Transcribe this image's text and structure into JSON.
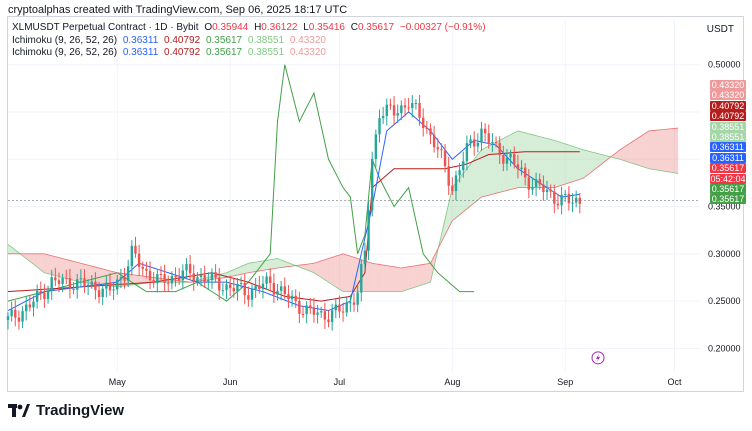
{
  "caption": "cryptoalphas created with TradingView.com, Sep 06, 2025 18:17 UTC",
  "brand": "TradingView",
  "legend": {
    "symbol": "XLMUSDT Perpetual Contract · 1D · Bybit",
    "o_label": "O",
    "o": "0.35944",
    "h_label": "H",
    "h": "0.36122",
    "l_label": "L",
    "l": "0.35416",
    "c_label": "C",
    "c": "0.35617",
    "change": "−0.00327 (−0.91%)",
    "ichimoku1": "Ichimoku (9, 26, 52, 26)",
    "ichimoku2": "Ichimoku (9, 26, 52, 26)",
    "ichi_values": [
      "0.36311",
      "0.40792",
      "0.35617",
      "0.38551",
      "0.43320"
    ]
  },
  "currency": "USDT",
  "price_tags": [
    {
      "text": "0.43320",
      "color": "#ef9a9a"
    },
    {
      "text": "0.43320",
      "color": "#ef9a9a"
    },
    {
      "text": "0.40792",
      "color": "#b71c1c"
    },
    {
      "text": "0.40792",
      "color": "#b71c1c"
    },
    {
      "text": "0.38551",
      "color": "#a5d6a7"
    },
    {
      "text": "0.38551",
      "color": "#a5d6a7"
    },
    {
      "text": "0.36311",
      "color": "#2962ff"
    },
    {
      "text": "0.36311",
      "color": "#2962ff"
    },
    {
      "text": "0.35617",
      "color": "#f23645"
    },
    {
      "text": "05:42:04",
      "color": "#f23645"
    },
    {
      "text": "0.35617",
      "color": "#43a047"
    },
    {
      "text": "0.35617",
      "color": "#43a047"
    }
  ],
  "chart_data": {
    "type": "candlestick",
    "y_ticks": [
      0.5,
      0.45,
      0.4,
      0.35,
      0.3,
      0.25,
      0.2
    ],
    "y_tick_labels": [
      "0.50000",
      "",
      "",
      "0.35000",
      "0.30000",
      "0.25000",
      "0.20000"
    ],
    "ylim": [
      0.175,
      0.505
    ],
    "x_labels": [
      "May",
      "Jun",
      "Jul",
      "Aug",
      "Sep",
      "Oct"
    ],
    "x_label_days": [
      30,
      61,
      91,
      122,
      153,
      183
    ],
    "xlim": [
      0,
      190
    ],
    "colors": {
      "up": "#26a69a",
      "down": "#ef5350",
      "tenkan": "#2962ff",
      "kijun": "#b71c1c",
      "chikou": "#43a047",
      "cloud_bull": "#a5d6a7",
      "cloud_bear": "#ef9a9a"
    },
    "candle_keypoints": [
      [
        0,
        0.23
      ],
      [
        6,
        0.245
      ],
      [
        12,
        0.27
      ],
      [
        18,
        0.27
      ],
      [
        24,
        0.265
      ],
      [
        28,
        0.26
      ],
      [
        32,
        0.28
      ],
      [
        34,
        0.3
      ],
      [
        38,
        0.28
      ],
      [
        42,
        0.27
      ],
      [
        48,
        0.28
      ],
      [
        54,
        0.275
      ],
      [
        60,
        0.265
      ],
      [
        66,
        0.26
      ],
      [
        72,
        0.27
      ],
      [
        78,
        0.25
      ],
      [
        82,
        0.24
      ],
      [
        86,
        0.235
      ],
      [
        92,
        0.24
      ],
      [
        96,
        0.26
      ],
      [
        98,
        0.3
      ],
      [
        100,
        0.4
      ],
      [
        102,
        0.45
      ],
      [
        106,
        0.45
      ],
      [
        110,
        0.46
      ],
      [
        114,
        0.44
      ],
      [
        118,
        0.41
      ],
      [
        122,
        0.37
      ],
      [
        126,
        0.41
      ],
      [
        130,
        0.43
      ],
      [
        134,
        0.41
      ],
      [
        138,
        0.4
      ],
      [
        142,
        0.38
      ],
      [
        146,
        0.37
      ],
      [
        150,
        0.36
      ],
      [
        154,
        0.355
      ],
      [
        157,
        0.356
      ]
    ],
    "tenkan_keypoints": [
      [
        0,
        0.24
      ],
      [
        10,
        0.26
      ],
      [
        20,
        0.265
      ],
      [
        30,
        0.27
      ],
      [
        36,
        0.29
      ],
      [
        44,
        0.28
      ],
      [
        52,
        0.27
      ],
      [
        60,
        0.27
      ],
      [
        70,
        0.26
      ],
      [
        80,
        0.245
      ],
      [
        88,
        0.24
      ],
      [
        94,
        0.25
      ],
      [
        100,
        0.35
      ],
      [
        104,
        0.43
      ],
      [
        110,
        0.45
      ],
      [
        116,
        0.43
      ],
      [
        122,
        0.4
      ],
      [
        128,
        0.42
      ],
      [
        134,
        0.415
      ],
      [
        140,
        0.39
      ],
      [
        146,
        0.375
      ],
      [
        152,
        0.36
      ],
      [
        157,
        0.363
      ]
    ],
    "kijun_keypoints": [
      [
        0,
        0.26
      ],
      [
        20,
        0.265
      ],
      [
        40,
        0.27
      ],
      [
        56,
        0.28
      ],
      [
        66,
        0.27
      ],
      [
        76,
        0.255
      ],
      [
        86,
        0.25
      ],
      [
        94,
        0.255
      ],
      [
        98,
        0.28
      ],
      [
        100,
        0.37
      ],
      [
        106,
        0.39
      ],
      [
        120,
        0.39
      ],
      [
        126,
        0.395
      ],
      [
        132,
        0.405
      ],
      [
        142,
        0.408
      ],
      [
        157,
        0.408
      ]
    ],
    "chikou_keypoints": [
      [
        0,
        0.25
      ],
      [
        10,
        0.26
      ],
      [
        20,
        0.27
      ],
      [
        30,
        0.28
      ],
      [
        38,
        0.26
      ],
      [
        46,
        0.26
      ],
      [
        52,
        0.27
      ],
      [
        60,
        0.25
      ],
      [
        66,
        0.27
      ],
      [
        72,
        0.3
      ],
      [
        74,
        0.44
      ],
      [
        76,
        0.5
      ],
      [
        80,
        0.44
      ],
      [
        84,
        0.47
      ],
      [
        88,
        0.4
      ],
      [
        92,
        0.37
      ],
      [
        94,
        0.36
      ],
      [
        96,
        0.3
      ],
      [
        98,
        0.32
      ],
      [
        100,
        0.4
      ],
      [
        102,
        0.38
      ],
      [
        106,
        0.35
      ],
      [
        110,
        0.37
      ],
      [
        114,
        0.3
      ],
      [
        118,
        0.28
      ],
      [
        124,
        0.26
      ],
      [
        128,
        0.26
      ]
    ],
    "senkou_a_keypoints": [
      [
        0,
        0.31
      ],
      [
        10,
        0.28
      ],
      [
        20,
        0.27
      ],
      [
        30,
        0.265
      ],
      [
        40,
        0.27
      ],
      [
        50,
        0.27
      ],
      [
        60,
        0.28
      ],
      [
        66,
        0.29
      ],
      [
        74,
        0.295
      ],
      [
        84,
        0.28
      ],
      [
        92,
        0.26
      ],
      [
        100,
        0.26
      ],
      [
        108,
        0.26
      ],
      [
        116,
        0.27
      ],
      [
        122,
        0.37
      ],
      [
        130,
        0.41
      ],
      [
        140,
        0.43
      ],
      [
        150,
        0.42
      ],
      [
        158,
        0.41
      ],
      [
        168,
        0.4
      ],
      [
        176,
        0.39
      ],
      [
        184,
        0.385
      ]
    ],
    "senkou_b_keypoints": [
      [
        0,
        0.3
      ],
      [
        10,
        0.3
      ],
      [
        20,
        0.29
      ],
      [
        30,
        0.28
      ],
      [
        40,
        0.275
      ],
      [
        50,
        0.27
      ],
      [
        60,
        0.275
      ],
      [
        66,
        0.28
      ],
      [
        74,
        0.285
      ],
      [
        84,
        0.29
      ],
      [
        92,
        0.3
      ],
      [
        100,
        0.29
      ],
      [
        108,
        0.285
      ],
      [
        116,
        0.29
      ],
      [
        122,
        0.335
      ],
      [
        130,
        0.36
      ],
      [
        140,
        0.37
      ],
      [
        150,
        0.37
      ],
      [
        158,
        0.38
      ],
      [
        168,
        0.41
      ],
      [
        176,
        0.43
      ],
      [
        184,
        0.433
      ]
    ]
  }
}
